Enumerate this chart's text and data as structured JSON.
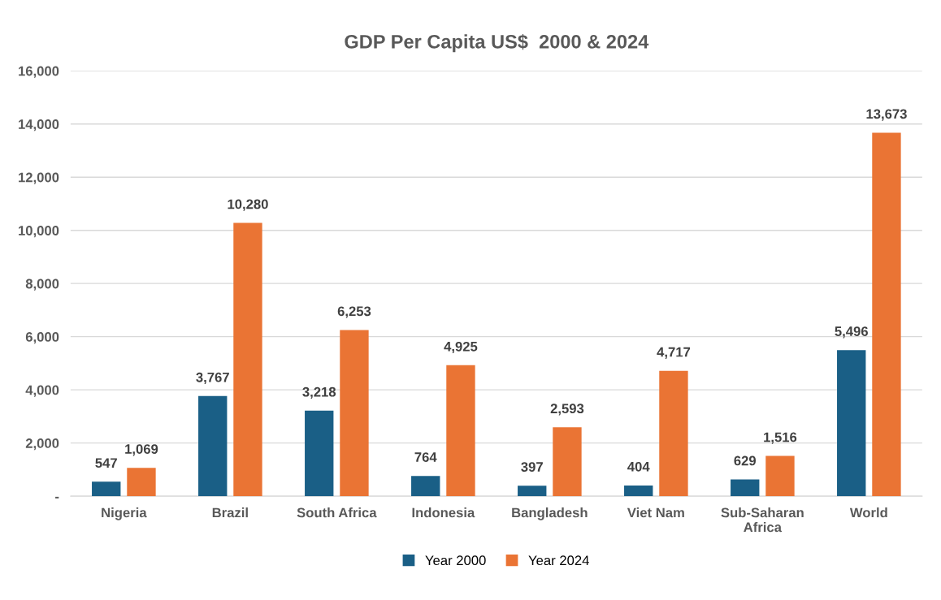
{
  "chart_data": {
    "type": "bar",
    "title": "GDP Per Capita US$  2000 & 2024",
    "categories": [
      "Nigeria",
      "Brazil",
      "South Africa",
      "Indonesia",
      "Bangladesh",
      "Viet Nam",
      "Sub-Saharan\nAfrica",
      "World"
    ],
    "series": [
      {
        "name": "Year 2000",
        "color": "#1a5f86",
        "values": [
          547,
          3767,
          3218,
          764,
          397,
          404,
          629,
          5496
        ],
        "value_labels": [
          "547",
          "3,767",
          "3,218",
          "764",
          "397",
          "404",
          "629",
          "5,496"
        ]
      },
      {
        "name": "Year 2024",
        "color": "#ea7434",
        "values": [
          1069,
          10280,
          6253,
          4925,
          2593,
          4717,
          1516,
          13673
        ],
        "value_labels": [
          "1,069",
          "10,280",
          "6,253",
          "4,925",
          "2,593",
          "4,717",
          "1,516",
          "13,673"
        ]
      }
    ],
    "ylim": [
      0,
      16000
    ],
    "yticks": [
      {
        "value": 0,
        "label": "-"
      },
      {
        "value": 2000,
        "label": "2,000"
      },
      {
        "value": 4000,
        "label": "4,000"
      },
      {
        "value": 6000,
        "label": "6,000"
      },
      {
        "value": 8000,
        "label": "8,000"
      },
      {
        "value": 10000,
        "label": "10,000"
      },
      {
        "value": 12000,
        "label": "12,000"
      },
      {
        "value": 14000,
        "label": "14,000"
      },
      {
        "value": 16000,
        "label": "16,000"
      }
    ],
    "grid": "y",
    "legend": "bottom"
  }
}
